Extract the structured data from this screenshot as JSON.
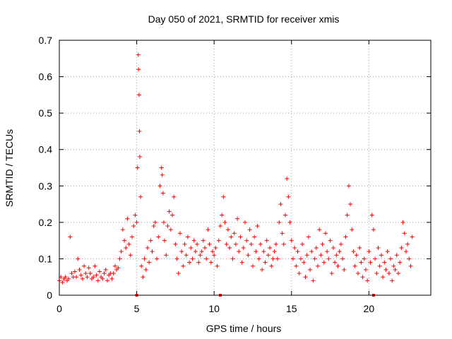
{
  "chart_data": {
    "type": "scatter",
    "title": "Day 050 of 2021, SRMTID for receiver xmis",
    "xlabel": "GPS time / hours",
    "ylabel": "SRMTID / TECUs",
    "xlim": [
      0,
      24
    ],
    "ylim": [
      0,
      0.7
    ],
    "xticks": [
      0,
      5,
      10,
      15,
      20
    ],
    "yticks": [
      0,
      0.1,
      0.2,
      0.3,
      0.4,
      0.5,
      0.6,
      0.7
    ],
    "xtick_labels": [
      "0",
      "5",
      "10",
      "15",
      "20"
    ],
    "ytick_labels": [
      "0",
      "0.1",
      "0.2",
      "0.3",
      "0.4",
      "0.5",
      "0.6",
      "0.7"
    ],
    "grid": true,
    "marker": "+",
    "color": "#ff0000",
    "series": [
      {
        "name": "SRMTID",
        "x": [
          0.0,
          0.1,
          0.2,
          0.3,
          0.4,
          0.5,
          0.6,
          0.7,
          0.8,
          0.9,
          1.0,
          1.1,
          1.2,
          1.3,
          1.4,
          1.5,
          1.6,
          1.7,
          1.8,
          1.9,
          2.0,
          2.1,
          2.2,
          2.3,
          2.4,
          2.5,
          2.6,
          2.7,
          2.8,
          2.9,
          3.0,
          3.1,
          3.2,
          3.3,
          3.4,
          3.5,
          3.6,
          3.7,
          3.8,
          3.9,
          4.0,
          4.1,
          4.2,
          4.3,
          4.4,
          4.5,
          4.6,
          4.7,
          4.8,
          4.9,
          5.0,
          5.05,
          5.1,
          5.12,
          5.15,
          5.18,
          5.2,
          5.25,
          5.3,
          5.4,
          5.5,
          5.6,
          5.7,
          5.8,
          5.9,
          6.0,
          6.1,
          6.2,
          6.3,
          6.4,
          6.5,
          6.6,
          6.65,
          6.7,
          6.75,
          6.8,
          6.9,
          7.0,
          7.1,
          7.2,
          7.3,
          7.4,
          7.5,
          7.6,
          7.7,
          7.8,
          7.9,
          8.0,
          8.1,
          8.2,
          8.3,
          8.4,
          8.5,
          8.6,
          8.7,
          8.8,
          8.9,
          9.0,
          9.1,
          9.2,
          9.3,
          9.4,
          9.5,
          9.6,
          9.7,
          9.8,
          9.9,
          10.0,
          10.1,
          10.2,
          10.3,
          10.4,
          10.5,
          10.6,
          10.7,
          10.8,
          10.9,
          11.0,
          11.1,
          11.2,
          11.3,
          11.4,
          11.5,
          11.6,
          11.7,
          11.8,
          11.9,
          12.0,
          12.1,
          12.2,
          12.3,
          12.4,
          12.5,
          12.6,
          12.7,
          12.8,
          12.9,
          13.0,
          13.1,
          13.2,
          13.3,
          13.4,
          13.5,
          13.6,
          13.7,
          13.8,
          13.9,
          14.0,
          14.1,
          14.2,
          14.3,
          14.4,
          14.5,
          14.6,
          14.7,
          14.8,
          14.9,
          15.0,
          15.1,
          15.2,
          15.3,
          15.4,
          15.5,
          15.6,
          15.7,
          15.8,
          15.9,
          16.0,
          16.1,
          16.2,
          16.3,
          16.4,
          16.5,
          16.6,
          16.7,
          16.8,
          16.9,
          17.0,
          17.1,
          17.2,
          17.3,
          17.4,
          17.5,
          17.6,
          17.7,
          17.8,
          17.9,
          18.0,
          18.1,
          18.2,
          18.3,
          18.4,
          18.5,
          18.6,
          18.7,
          18.8,
          18.9,
          19.0,
          19.1,
          19.2,
          19.3,
          19.4,
          19.5,
          19.6,
          19.7,
          19.8,
          19.9,
          20.0,
          20.1,
          20.2,
          20.3,
          20.4,
          20.5,
          20.6,
          20.7,
          20.8,
          20.9,
          21.0,
          21.1,
          21.2,
          21.3,
          21.4,
          21.5,
          21.6,
          21.7,
          21.8,
          21.9,
          22.0,
          22.1,
          22.2,
          22.3,
          22.4,
          22.5,
          22.6,
          22.7,
          22.8
        ],
        "y": [
          0.04,
          0.05,
          0.035,
          0.045,
          0.05,
          0.04,
          0.045,
          0.16,
          0.06,
          0.05,
          0.065,
          0.05,
          0.1,
          0.07,
          0.055,
          0.045,
          0.08,
          0.06,
          0.05,
          0.075,
          0.06,
          0.045,
          0.05,
          0.08,
          0.055,
          0.04,
          0.065,
          0.05,
          0.045,
          0.06,
          0.07,
          0.04,
          0.055,
          0.06,
          0.045,
          0.06,
          0.08,
          0.07,
          0.075,
          0.1,
          0.12,
          0.18,
          0.15,
          0.13,
          0.21,
          0.14,
          0.11,
          0.16,
          0.19,
          0.22,
          0.2,
          0.35,
          0.66,
          0.62,
          0.55,
          0.45,
          0.38,
          0.27,
          0.08,
          0.05,
          0.1,
          0.07,
          0.13,
          0.09,
          0.15,
          0.12,
          0.19,
          0.2,
          0.1,
          0.16,
          0.3,
          0.35,
          0.33,
          0.28,
          0.2,
          0.15,
          0.11,
          0.19,
          0.23,
          0.18,
          0.22,
          0.27,
          0.14,
          0.1,
          0.06,
          0.17,
          0.12,
          0.08,
          0.14,
          0.11,
          0.16,
          0.09,
          0.13,
          0.1,
          0.15,
          0.12,
          0.14,
          0.09,
          0.11,
          0.12,
          0.15,
          0.13,
          0.1,
          0.18,
          0.14,
          0.09,
          0.12,
          0.11,
          0.13,
          0.08,
          0.15,
          0.19,
          0.22,
          0.27,
          0.2,
          0.14,
          0.18,
          0.13,
          0.16,
          0.1,
          0.17,
          0.14,
          0.21,
          0.12,
          0.16,
          0.09,
          0.13,
          0.2,
          0.15,
          0.11,
          0.18,
          0.14,
          0.08,
          0.16,
          0.12,
          0.19,
          0.1,
          0.14,
          0.07,
          0.12,
          0.09,
          0.15,
          0.11,
          0.13,
          0.08,
          0.1,
          0.12,
          0.14,
          0.1,
          0.2,
          0.25,
          0.17,
          0.14,
          0.22,
          0.32,
          0.27,
          0.2,
          0.15,
          0.1,
          0.13,
          0.08,
          0.12,
          0.06,
          0.1,
          0.14,
          0.09,
          0.05,
          0.11,
          0.16,
          0.07,
          0.12,
          0.04,
          0.1,
          0.13,
          0.08,
          0.18,
          0.11,
          0.14,
          0.09,
          0.17,
          0.12,
          0.1,
          0.15,
          0.06,
          0.13,
          0.09,
          0.11,
          0.08,
          0.12,
          0.14,
          0.1,
          0.07,
          0.16,
          0.22,
          0.3,
          0.25,
          0.18,
          0.12,
          0.08,
          0.11,
          0.06,
          0.13,
          0.09,
          0.05,
          0.1,
          0.07,
          0.04,
          0.12,
          0.09,
          0.22,
          0.18,
          0.1,
          0.06,
          0.13,
          0.08,
          0.11,
          0.05,
          0.09,
          0.07,
          0.12,
          0.06,
          0.1,
          0.04,
          0.08,
          0.07,
          0.11,
          0.06,
          0.09,
          0.13,
          0.2,
          0.17,
          0.12,
          0.14,
          0.1,
          0.08,
          0.16
        ]
      }
    ],
    "gap_markers_x": [
      5.0,
      10.4,
      20.3
    ]
  }
}
